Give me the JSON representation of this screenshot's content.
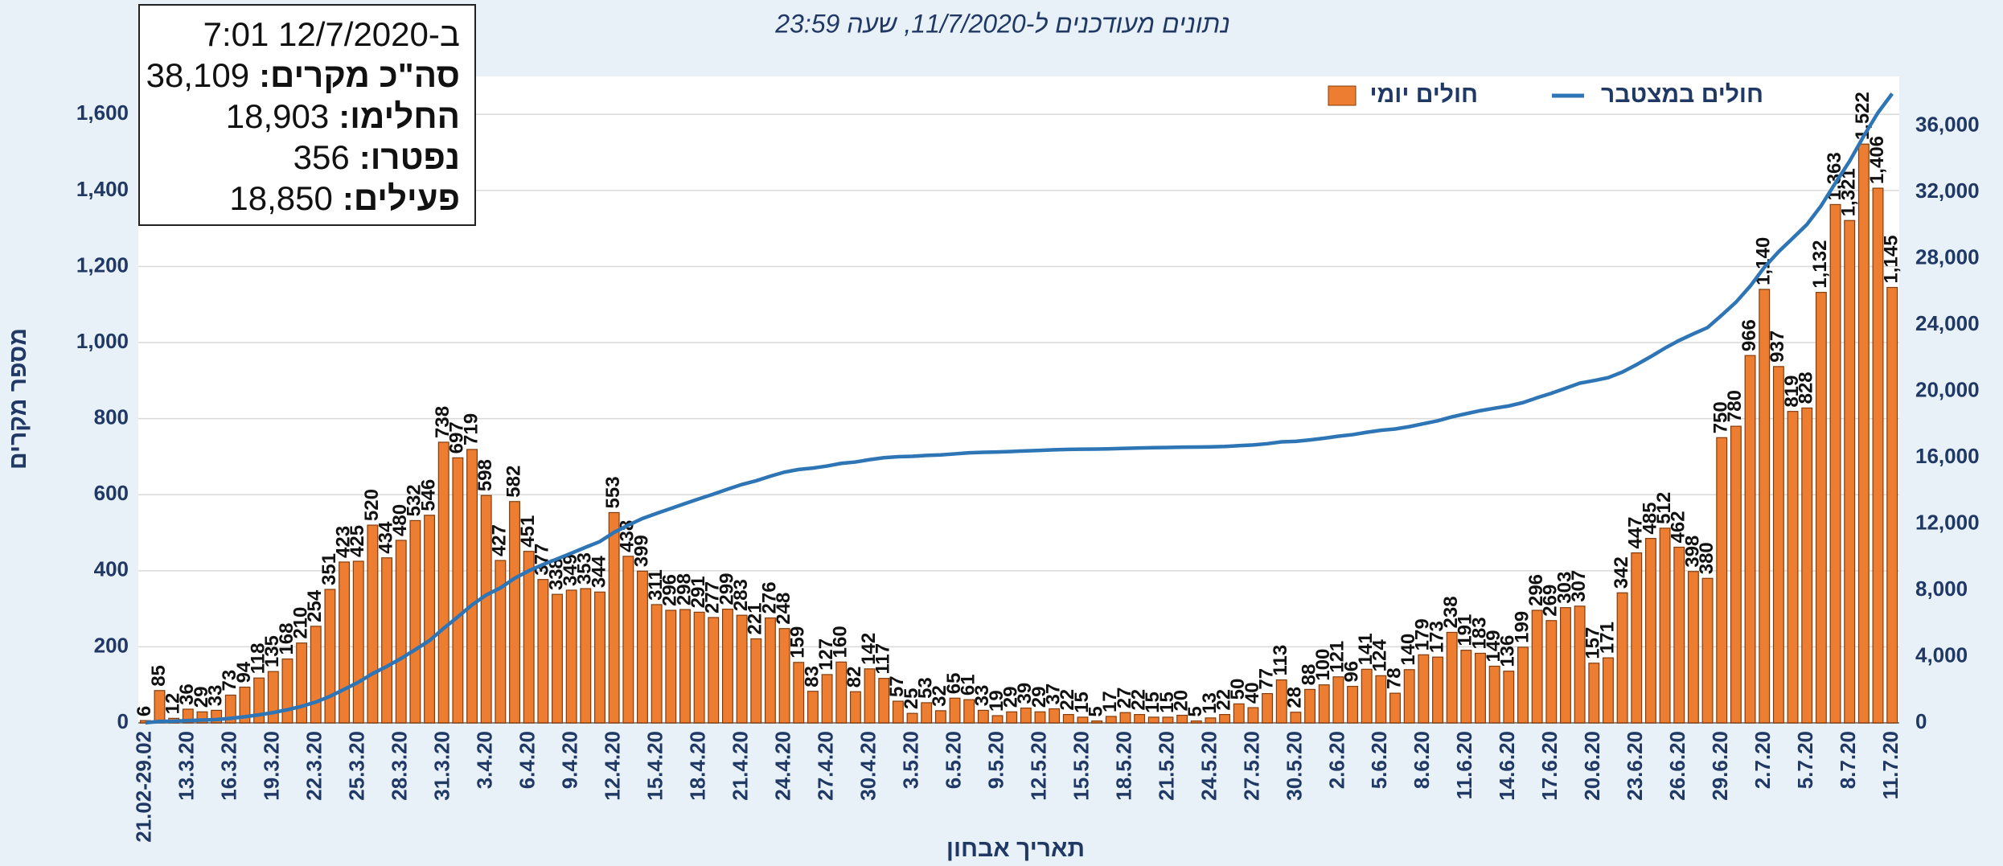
{
  "chart_data": {
    "type": "bar",
    "subtitle": "נתונים מעודכנים ל-11/7/2020, שעה 23:59",
    "x_label": "תאריך אבחון",
    "y_label": "מספר מקרים",
    "legend": "top",
    "grid": true,
    "info_box": {
      "timestamp": "ב-12/7/2020 7:01",
      "items": [
        {
          "label": "סה\"כ מקרים:",
          "value": "38,109"
        },
        {
          "label": "החלימו:",
          "value": "18,903"
        },
        {
          "label": "נפטרו:",
          "value": "356"
        },
        {
          "label": "פעילים:",
          "value": "18,850"
        }
      ]
    },
    "categories": [
      "21.02-29.02",
      null,
      null,
      "13.3.20",
      null,
      null,
      "16.3.20",
      null,
      null,
      "19.3.20",
      null,
      null,
      "22.3.20",
      null,
      null,
      "25.3.20",
      null,
      null,
      "28.3.20",
      null,
      null,
      "31.3.20",
      null,
      null,
      "3.4.20",
      null,
      null,
      "6.4.20",
      null,
      null,
      "9.4.20",
      null,
      null,
      "12.4.20",
      null,
      null,
      "15.4.20",
      null,
      null,
      "18.4.20",
      null,
      null,
      "21.4.20",
      null,
      null,
      "24.4.20",
      null,
      null,
      "27.4.20",
      null,
      null,
      "30.4.20",
      null,
      null,
      "3.5.20",
      null,
      null,
      "6.5.20",
      null,
      null,
      "9.5.20",
      null,
      null,
      "12.5.20",
      null,
      null,
      "15.5.20",
      null,
      null,
      "18.5.20",
      null,
      null,
      "21.5.20",
      null,
      null,
      "24.5.20",
      null,
      null,
      "27.5.20",
      null,
      null,
      "30.5.20",
      null,
      null,
      "2.6.20",
      null,
      null,
      "5.6.20",
      null,
      null,
      "8.6.20",
      null,
      null,
      "11.6.20",
      null,
      null,
      "14.6.20",
      null,
      null,
      "17.6.20",
      null,
      null,
      "20.6.20",
      null,
      null,
      "23.6.20",
      null,
      null,
      "26.6.20",
      null,
      null,
      "29.6.20",
      null,
      null,
      "2.7.20",
      null,
      null,
      "5.7.20",
      null,
      null,
      "8.7.20",
      null,
      null,
      "11.7.20"
    ],
    "series": [
      {
        "name": "חולים יומי",
        "type": "bar",
        "color": "#ed7d31",
        "values": [
          6,
          85,
          12,
          36,
          29,
          33,
          73,
          94,
          118,
          135,
          168,
          210,
          254,
          351,
          423,
          425,
          520,
          434,
          480,
          532,
          546,
          738,
          697,
          719,
          598,
          427,
          582,
          451,
          377,
          338,
          349,
          353,
          344,
          553,
          438,
          399,
          311,
          296,
          298,
          291,
          277,
          299,
          283,
          221,
          276,
          248,
          159,
          83,
          127,
          160,
          82,
          142,
          117,
          57,
          25,
          53,
          32,
          65,
          61,
          33,
          19,
          29,
          39,
          29,
          37,
          22,
          15,
          5,
          17,
          27,
          22,
          15,
          15,
          20,
          5,
          13,
          22,
          50,
          40,
          77,
          113,
          28,
          88,
          100,
          121,
          96,
          141,
          124,
          78,
          140,
          179,
          173,
          238,
          191,
          183,
          149,
          136,
          199,
          296,
          269,
          303,
          307,
          157,
          171,
          342,
          447,
          485,
          512,
          462,
          398,
          380,
          750,
          780,
          966,
          1140,
          937,
          819,
          828,
          1132,
          1363,
          1321,
          1522,
          1406,
          1145
        ],
        "value_labels": [
          "6",
          "85",
          "12",
          "36",
          "29",
          "33",
          "73",
          "94",
          "118",
          "135",
          "168",
          "210",
          "254",
          "351",
          "423",
          "425",
          "520",
          "434",
          "480",
          "532",
          "546",
          "738",
          "697",
          "719",
          "598",
          "427",
          "582",
          "451",
          "377",
          "338",
          "349",
          "353",
          "344",
          "553",
          "438",
          "399",
          "311",
          "296",
          "298",
          "291",
          "277",
          "299",
          "283",
          "221",
          "276",
          "248",
          "159",
          "83",
          "127",
          "160",
          "82",
          "142",
          "117",
          "57",
          "25",
          "53",
          "32",
          "65",
          "61",
          "33",
          "19",
          "29",
          "39",
          "29",
          "37",
          "22",
          "15",
          "5",
          "17",
          "27",
          "22",
          "15",
          "15",
          "20",
          "5",
          "13",
          "22",
          "50",
          "40",
          "77",
          "113",
          "28",
          "88",
          "100",
          "121",
          "96",
          "141",
          "124",
          "78",
          "140",
          "179",
          "173",
          "238",
          "191",
          "183",
          "149",
          "136",
          "199",
          "296",
          "269",
          "303",
          "307",
          "157",
          "171",
          "342",
          "447",
          "485",
          "512",
          "462",
          "398",
          "380",
          "750",
          "780",
          "966",
          "1,140",
          "937",
          "819",
          "828",
          "1,132",
          "1,363",
          "1,321",
          "1,522",
          "1,406",
          "1,145"
        ]
      },
      {
        "name": "חולים במצטבר",
        "type": "line",
        "axis": "y2",
        "color": "#2e75b6",
        "values": [
          6,
          91,
          103,
          139,
          168,
          201,
          274,
          368,
          486,
          621,
          789,
          999,
          1253,
          1604,
          2027,
          2452,
          2972,
          3406,
          3886,
          4418,
          4964,
          5702,
          6399,
          7118,
          7716,
          8143,
          8725,
          9176,
          9553,
          9891,
          10240,
          10593,
          10937,
          11490,
          11928,
          12327,
          12638,
          12934,
          13232,
          13523,
          13800,
          14099,
          14382,
          14603,
          14879,
          15127,
          15286,
          15369,
          15496,
          15656,
          15738,
          15880,
          15997,
          16054,
          16079,
          16132,
          16164,
          16229,
          16290,
          16323,
          16342,
          16371,
          16410,
          16439,
          16476,
          16498,
          16513,
          16518,
          16535,
          16562,
          16584,
          16599,
          16614,
          16634,
          16639,
          16652,
          16674,
          16724,
          16764,
          16841,
          16954,
          16982,
          17070,
          17170,
          17291,
          17387,
          17528,
          17652,
          17730,
          17870,
          18049,
          18222,
          18460,
          18651,
          18834,
          18983,
          19119,
          19318,
          19614,
          19883,
          20186,
          20493,
          20650,
          20821,
          21163,
          21610,
          22095,
          22607,
          23069,
          23467,
          23847,
          24597,
          25377,
          26343,
          27483,
          28420,
          29239,
          30067,
          31199,
          32562,
          33883,
          35405,
          36811,
          37956
        ]
      }
    ],
    "ylim": [
      0,
      1700
    ],
    "yticks": [
      0,
      200,
      400,
      600,
      800,
      {
        "value": 1000,
        "label": "1,000"
      },
      {
        "value": 1200,
        "label": "1,200"
      },
      {
        "value": 1400,
        "label": "1,400"
      },
      {
        "value": 1600,
        "label": "1,600"
      }
    ],
    "y2lim": [
      0,
      39000
    ],
    "y2ticks": [
      0,
      {
        "value": 4000,
        "label": "4,000"
      },
      {
        "value": 8000,
        "label": "8,000"
      },
      {
        "value": 12000,
        "label": "12,000"
      },
      {
        "value": 16000,
        "label": "16,000"
      },
      {
        "value": 20000,
        "label": "20,000"
      },
      {
        "value": 24000,
        "label": "24,000"
      },
      {
        "value": 28000,
        "label": "28,000"
      },
      {
        "value": 32000,
        "label": "32,000"
      },
      {
        "value": 36000,
        "label": "36,000"
      }
    ]
  }
}
